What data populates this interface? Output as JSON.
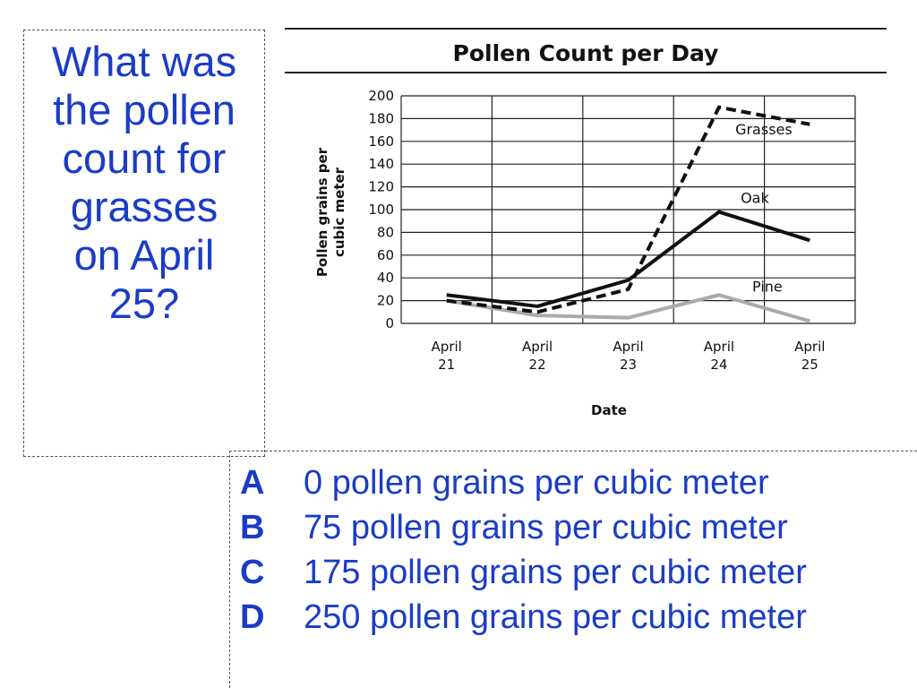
{
  "question": {
    "lines": [
      "What was",
      "the pollen",
      "count for",
      "grasses",
      "on April",
      "25?"
    ]
  },
  "answers": [
    {
      "letter": "A",
      "text": "0 pollen grains per cubic meter"
    },
    {
      "letter": "B",
      "text": "75 pollen grains per cubic meter"
    },
    {
      "letter": "C",
      "text": "175 pollen grains per cubic meter"
    },
    {
      "letter": "D",
      "text": "250 pollen grains per cubic meter"
    }
  ],
  "colors": {
    "text_blue": "#1a3cc8",
    "oak": "#111111",
    "grasses": "#111111",
    "pine": "#aaaaaa"
  },
  "chart_data": {
    "type": "line",
    "title": "Pollen Count per Day",
    "xlabel": "Date",
    "ylabel_lines": [
      "Pollen grains per",
      "cubic meter"
    ],
    "categories": [
      [
        "April",
        "21"
      ],
      [
        "April",
        "22"
      ],
      [
        "April",
        "23"
      ],
      [
        "April",
        "24"
      ],
      [
        "April",
        "25"
      ]
    ],
    "ylim": [
      0,
      200
    ],
    "yticks": [
      0,
      20,
      40,
      60,
      80,
      100,
      120,
      140,
      160,
      180,
      200
    ],
    "grid": true,
    "series": [
      {
        "name": "Grasses",
        "style": "dashed",
        "values": [
          20,
          10,
          30,
          190,
          175
        ]
      },
      {
        "name": "Oak",
        "style": "solid",
        "values": [
          25,
          15,
          38,
          98,
          73
        ]
      },
      {
        "name": "Pine",
        "style": "solid-gray",
        "values": [
          20,
          7,
          5,
          25,
          2
        ]
      }
    ]
  }
}
